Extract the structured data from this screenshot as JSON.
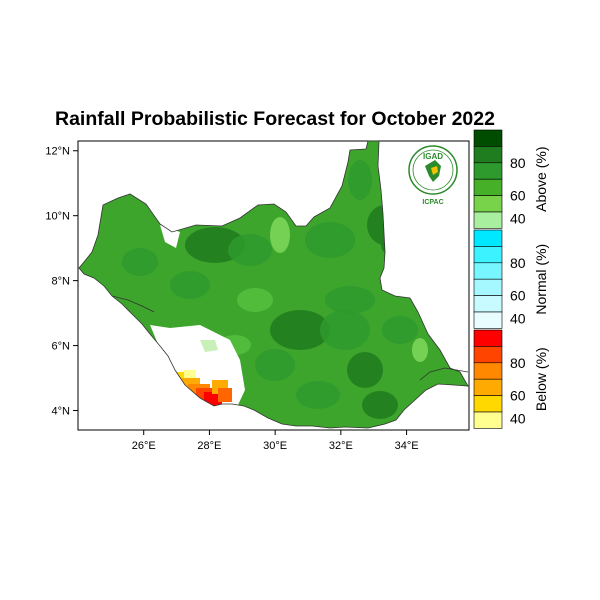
{
  "title": "Rainfall Probabilistic Forecast for October 2022",
  "map": {
    "lon_range": [
      24.0,
      35.9
    ],
    "lat_range": [
      3.4,
      12.3
    ],
    "x_ticks": [
      "26°E",
      "28°E",
      "30°E",
      "32°E",
      "34°E"
    ],
    "y_ticks": [
      "12°N",
      "10°N",
      "8°N",
      "6°N",
      "4°N"
    ],
    "region": "South Sudan",
    "dominant_category": "Above"
  },
  "legend": {
    "groups": [
      {
        "name": "Above (%)",
        "labels": [
          "80",
          "60",
          "40"
        ],
        "colors": [
          "#004d00",
          "#1f7d1f",
          "#2e9a2e",
          "#46b028",
          "#78d24a",
          "#a8f0a0"
        ]
      },
      {
        "name": "Normal (%)",
        "labels": [
          "80",
          "60",
          "40"
        ],
        "colors": [
          "#00e8ff",
          "#3cf2ff",
          "#78f6ff",
          "#a5f8ff",
          "#c8fbff",
          "#e8fdff"
        ]
      },
      {
        "name": "Below (%)",
        "labels": [
          "80",
          "60",
          "40"
        ],
        "colors": [
          "#ff0000",
          "#ff4400",
          "#ff8800",
          "#ffaa00",
          "#ffd800",
          "#ffff90"
        ]
      }
    ]
  },
  "logo": {
    "top_text": "IGAD",
    "bottom_text": "ICPAC"
  }
}
